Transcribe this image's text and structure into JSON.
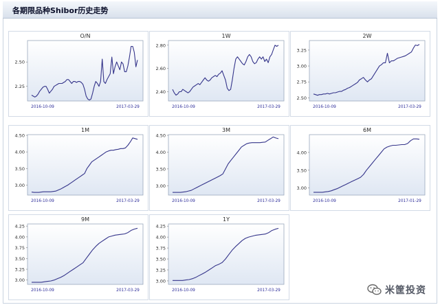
{
  "page_title": "各期限品种Shibor历史走势",
  "watermark_text": "米筐投资",
  "colors": {
    "line": "#34348a",
    "tick": "#2b2b2b",
    "date": "#2b2b99",
    "plot_bg_top": "#ffffff",
    "plot_bg_bottom": "#dfe7f3"
  },
  "chart_data": [
    {
      "type": "line",
      "title": "O/N",
      "xlabel": "",
      "ylabel": "",
      "xticks": [
        "2016-10-09",
        "2017-03-29"
      ],
      "yticks": [
        2.25,
        2.5
      ],
      "ylim": [
        2.1,
        2.72
      ],
      "values": [
        2.16,
        2.15,
        2.14,
        2.15,
        2.17,
        2.2,
        2.22,
        2.24,
        2.25,
        2.25,
        2.22,
        2.18,
        2.2,
        2.22,
        2.25,
        2.26,
        2.27,
        2.28,
        2.28,
        2.28,
        2.29,
        2.3,
        2.32,
        2.32,
        2.3,
        2.28,
        2.3,
        2.3,
        2.29,
        2.3,
        2.3,
        2.29,
        2.27,
        2.22,
        2.15,
        2.12,
        2.11,
        2.12,
        2.18,
        2.25,
        2.3,
        2.28,
        2.25,
        2.3,
        2.53,
        2.3,
        2.28,
        2.32,
        2.35,
        2.38,
        2.55,
        2.38,
        2.45,
        2.5,
        2.46,
        2.42,
        2.5,
        2.48,
        2.4,
        2.4,
        2.46,
        2.55,
        2.66,
        2.66,
        2.6,
        2.45,
        2.52
      ]
    },
    {
      "type": "line",
      "title": "1W",
      "xlabel": "",
      "ylabel": "",
      "xticks": [
        "2016-10-09",
        "2017-03-29"
      ],
      "yticks": [
        2.4,
        2.6,
        2.8
      ],
      "ylim": [
        2.32,
        2.84
      ],
      "values": [
        2.42,
        2.39,
        2.37,
        2.38,
        2.4,
        2.4,
        2.42,
        2.41,
        2.4,
        2.39,
        2.4,
        2.42,
        2.44,
        2.45,
        2.46,
        2.47,
        2.46,
        2.48,
        2.5,
        2.52,
        2.5,
        2.49,
        2.5,
        2.52,
        2.53,
        2.54,
        2.53,
        2.55,
        2.56,
        2.58,
        2.54,
        2.5,
        2.43,
        2.41,
        2.42,
        2.5,
        2.6,
        2.68,
        2.7,
        2.68,
        2.66,
        2.64,
        2.63,
        2.66,
        2.7,
        2.72,
        2.7,
        2.66,
        2.64,
        2.65,
        2.68,
        2.7,
        2.68,
        2.7,
        2.66,
        2.68,
        2.65,
        2.7,
        2.72,
        2.76,
        2.8,
        2.79,
        2.8
      ]
    },
    {
      "type": "line",
      "title": "2W",
      "xlabel": "",
      "ylabel": "",
      "xticks": [
        "2016-10-09",
        "2017-03-29"
      ],
      "yticks": [
        2.5,
        2.75,
        3.0,
        3.25
      ],
      "ylim": [
        2.45,
        3.4
      ],
      "values": [
        2.56,
        2.55,
        2.54,
        2.55,
        2.55,
        2.56,
        2.56,
        2.57,
        2.56,
        2.57,
        2.58,
        2.58,
        2.59,
        2.6,
        2.6,
        2.62,
        2.63,
        2.65,
        2.66,
        2.68,
        2.7,
        2.72,
        2.74,
        2.78,
        2.8,
        2.82,
        2.78,
        2.75,
        2.78,
        2.8,
        2.85,
        2.9,
        2.95,
        3.0,
        3.02,
        3.05,
        3.05,
        3.2,
        3.05,
        3.08,
        3.08,
        3.1,
        3.12,
        3.13,
        3.14,
        3.15,
        3.16,
        3.18,
        3.2,
        3.22,
        3.28,
        3.33,
        3.32,
        3.34
      ]
    },
    {
      "type": "line",
      "title": "1M",
      "xlabel": "",
      "ylabel": "",
      "xticks": [
        "2016-10-09",
        "2017-03-29"
      ],
      "yticks": [
        3.0,
        3.5,
        4.0,
        4.5
      ],
      "ylim": [
        2.7,
        4.52
      ],
      "values": [
        2.79,
        2.78,
        2.78,
        2.78,
        2.79,
        2.8,
        2.8,
        2.8,
        2.8,
        2.81,
        2.82,
        2.85,
        2.88,
        2.92,
        2.96,
        3.0,
        3.05,
        3.1,
        3.15,
        3.2,
        3.25,
        3.3,
        3.35,
        3.5,
        3.6,
        3.7,
        3.75,
        3.8,
        3.85,
        3.9,
        3.95,
        4.0,
        4.03,
        4.05,
        4.05,
        4.07,
        4.08,
        4.1,
        4.1,
        4.12,
        4.2,
        4.3,
        4.42,
        4.4,
        4.38
      ]
    },
    {
      "type": "line",
      "title": "3M",
      "xlabel": "",
      "ylabel": "",
      "xticks": [
        "2016-10-09",
        "2017-03-29"
      ],
      "yticks": [
        3.0,
        3.5,
        4.0,
        4.5
      ],
      "ylim": [
        2.72,
        4.52
      ],
      "values": [
        2.8,
        2.8,
        2.8,
        2.8,
        2.81,
        2.82,
        2.84,
        2.86,
        2.9,
        2.94,
        2.98,
        3.02,
        3.06,
        3.1,
        3.14,
        3.18,
        3.22,
        3.26,
        3.3,
        3.35,
        3.5,
        3.65,
        3.75,
        3.85,
        3.95,
        4.05,
        4.15,
        4.2,
        4.25,
        4.27,
        4.28,
        4.28,
        4.28,
        4.28,
        4.29,
        4.3,
        4.35,
        4.4,
        4.45,
        4.42,
        4.4
      ]
    },
    {
      "type": "line",
      "title": "6M",
      "xlabel": "",
      "ylabel": "",
      "xticks": [
        "2016-10-09",
        "2017-01-29"
      ],
      "yticks": [
        3.0,
        3.5,
        4.0
      ],
      "ylim": [
        2.8,
        4.5
      ],
      "values": [
        2.88,
        2.88,
        2.88,
        2.88,
        2.89,
        2.9,
        2.92,
        2.95,
        2.98,
        3.02,
        3.06,
        3.1,
        3.14,
        3.18,
        3.22,
        3.26,
        3.3,
        3.38,
        3.5,
        3.6,
        3.7,
        3.8,
        3.9,
        4.0,
        4.1,
        4.15,
        4.18,
        4.2,
        4.2,
        4.21,
        4.22,
        4.22,
        4.25,
        4.33,
        4.38,
        4.38,
        4.37
      ]
    },
    {
      "type": "line",
      "title": "9M",
      "xlabel": "",
      "ylabel": "",
      "xticks": [
        "2016-10-09",
        "2017-03-29"
      ],
      "yticks": [
        3.0,
        3.25,
        3.5,
        3.75,
        4.0,
        4.25
      ],
      "ylim": [
        2.9,
        4.3
      ],
      "values": [
        2.95,
        2.95,
        2.95,
        2.95,
        2.96,
        2.97,
        2.98,
        3.0,
        3.03,
        3.06,
        3.1,
        3.15,
        3.2,
        3.25,
        3.3,
        3.35,
        3.4,
        3.5,
        3.6,
        3.7,
        3.78,
        3.85,
        3.9,
        3.95,
        4.0,
        4.02,
        4.04,
        4.05,
        4.06,
        4.07,
        4.1,
        4.15,
        4.18,
        4.2
      ]
    },
    {
      "type": "line",
      "title": "1Y",
      "xlabel": "",
      "ylabel": "",
      "xticks": [
        "2016-10-09",
        "2017-03-29"
      ],
      "yticks": [
        3.0,
        3.25,
        3.5,
        3.75,
        4.0,
        4.25
      ],
      "ylim": [
        2.92,
        4.3
      ],
      "values": [
        3.01,
        3.01,
        3.01,
        3.01,
        3.02,
        3.03,
        3.05,
        3.08,
        3.12,
        3.16,
        3.2,
        3.25,
        3.3,
        3.35,
        3.38,
        3.42,
        3.5,
        3.6,
        3.7,
        3.78,
        3.85,
        3.92,
        3.97,
        4.0,
        4.02,
        4.04,
        4.05,
        4.06,
        4.07,
        4.1,
        4.15,
        4.18,
        4.2
      ]
    }
  ]
}
